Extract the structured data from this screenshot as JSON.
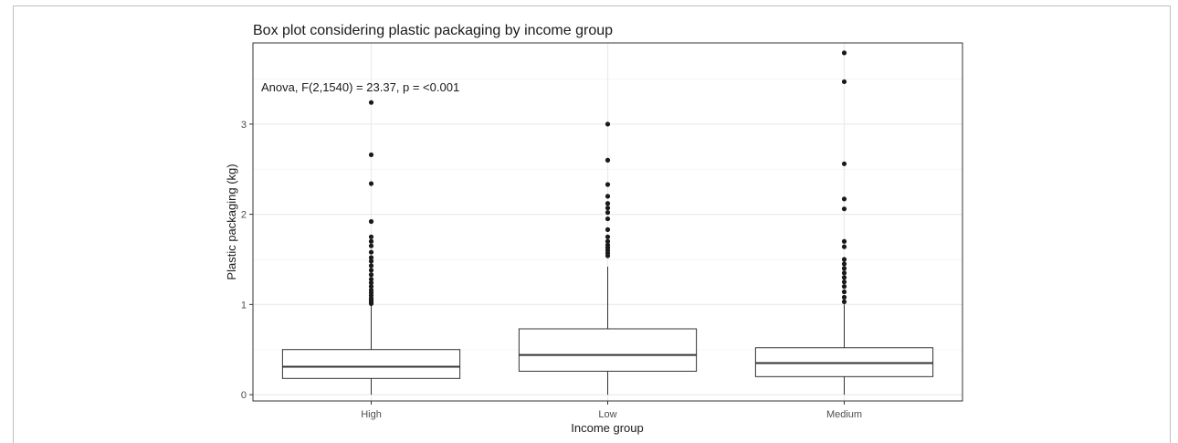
{
  "chart_data": {
    "type": "box",
    "title": "Box plot considering plastic packaging by income group",
    "xlabel": "Income group",
    "ylabel": "Plastic packaging (kg)",
    "annotation": "Anova, F(2,1540) = 23.37, p = <0.001",
    "categories": [
      "High",
      "Low",
      "Medium"
    ],
    "y_ticks": [
      0,
      1,
      2,
      3
    ],
    "y_tick_labels": [
      "0",
      "1",
      "2",
      "3"
    ],
    "ylim": [
      -0.07,
      3.9
    ],
    "grid": true,
    "theme": "bw",
    "boxes": [
      {
        "category": "High",
        "min": 0.0,
        "q1": 0.18,
        "median": 0.31,
        "q3": 0.5,
        "max": 0.99,
        "outliers": [
          1.01,
          1.03,
          1.05,
          1.07,
          1.1,
          1.13,
          1.16,
          1.2,
          1.24,
          1.28,
          1.33,
          1.38,
          1.43,
          1.48,
          1.52,
          1.58,
          1.65,
          1.7,
          1.75,
          1.92,
          2.34,
          2.66,
          3.24
        ]
      },
      {
        "category": "Low",
        "min": 0.0,
        "q1": 0.26,
        "median": 0.44,
        "q3": 0.73,
        "max": 1.42,
        "outliers": [
          1.54,
          1.57,
          1.6,
          1.63,
          1.66,
          1.7,
          1.75,
          1.83,
          1.95,
          2.02,
          2.07,
          2.12,
          2.2,
          2.33,
          2.6,
          3.0
        ]
      },
      {
        "category": "Medium",
        "min": 0.0,
        "q1": 0.2,
        "median": 0.35,
        "q3": 0.52,
        "max": 1.0,
        "outliers": [
          1.03,
          1.08,
          1.14,
          1.2,
          1.25,
          1.3,
          1.35,
          1.4,
          1.45,
          1.5,
          1.64,
          1.7,
          2.06,
          2.17,
          2.56,
          3.47,
          3.79
        ]
      }
    ],
    "colors": {
      "box_outline": "#333333",
      "median_line": "#333333",
      "outlier_point": "#1a1a1a",
      "panel_border": "#333333",
      "grid_major": "#ebebeb",
      "grid_minor": "#f5f5f5",
      "background": "#ffffff"
    }
  }
}
